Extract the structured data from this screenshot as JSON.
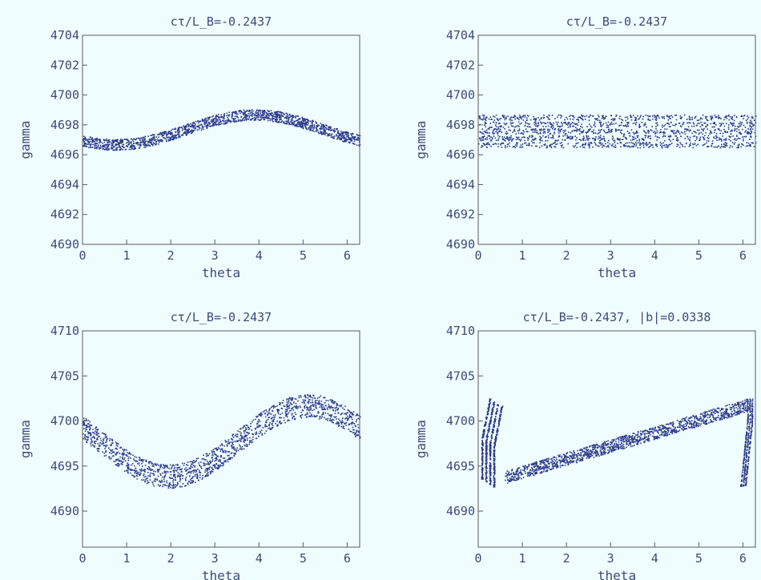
{
  "chart_data": [
    {
      "type": "scatter",
      "title": "cτ/L_B=-0.2437",
      "xlabel": "theta",
      "ylabel": "gamma",
      "xlim": [
        0,
        6.2832
      ],
      "ylim": [
        4690,
        4704
      ],
      "xticks": [
        "0",
        "1",
        "2",
        "3",
        "4",
        "5",
        "6"
      ],
      "yticks": [
        "4690",
        "4692",
        "4694",
        "4696",
        "4698",
        "4700",
        "4702",
        "4704"
      ],
      "marker_color": "#2d3a8c",
      "band": {
        "shape": "sine",
        "center_mean": 4697.7,
        "center_amplitude": 1.0,
        "phase_peak_theta": 3.9,
        "half_width": 0.35,
        "x": [
          0,
          1,
          2,
          3,
          3.9,
          5,
          6,
          6.28
        ],
        "y_center": [
          4696.9,
          4696.8,
          4697.3,
          4698.2,
          4698.6,
          4698.2,
          4697.2,
          4696.9
        ]
      }
    },
    {
      "type": "scatter",
      "title": "cτ/L_B=-0.2437",
      "xlabel": "theta",
      "ylabel": "gamma",
      "xlim": [
        0,
        6.2832
      ],
      "ylim": [
        4690,
        4704
      ],
      "xticks": [
        "0",
        "1",
        "2",
        "3",
        "4",
        "5",
        "6"
      ],
      "yticks": [
        "4690",
        "4692",
        "4694",
        "4696",
        "4698",
        "4700",
        "4702",
        "4704"
      ],
      "marker_color": "#2d3a8c",
      "band": {
        "shape": "flat",
        "center_mean": 4697.6,
        "center_amplitude": 0,
        "phase_peak_theta": 0,
        "half_width": 1.05,
        "x": [
          0,
          6.28
        ],
        "y_center": [
          4697.6,
          4697.6
        ]
      }
    },
    {
      "type": "scatter",
      "title": "cτ/L_B=-0.2437",
      "xlabel": "theta",
      "ylabel": "gamma",
      "xlim": [
        0,
        6.2832
      ],
      "ylim": [
        4686,
        4710
      ],
      "xticks": [
        "0",
        "1",
        "2",
        "3",
        "4",
        "5",
        "6"
      ],
      "yticks": [
        "4690",
        "4695",
        "4700",
        "4705",
        "4710"
      ],
      "marker_color": "#2d3a8c",
      "band": {
        "shape": "sine",
        "center_mean": 4697.8,
        "center_amplitude": 3.9,
        "phase_peak_theta": 5.1,
        "half_width": 1.25,
        "x": [
          0,
          1.9,
          3.5,
          5.1,
          6.28
        ],
        "y_center": [
          4698.6,
          4693.9,
          4697.0,
          4701.7,
          4698.6
        ]
      }
    },
    {
      "type": "scatter",
      "title": "cτ/L_B=-0.2437, |b|=0.0338",
      "xlabel": "theta",
      "ylabel": "gamma",
      "xlim": [
        0,
        6.2832
      ],
      "ylim": [
        4686,
        4710
      ],
      "xticks": [
        "0",
        "1",
        "2",
        "3",
        "4",
        "5",
        "6"
      ],
      "yticks": [
        "4690",
        "4695",
        "4700",
        "4705",
        "4710"
      ],
      "marker_color": "#2d3a8c",
      "band": {
        "shape": "ramp-with-hooks",
        "center_mean": 4698.0,
        "center_amplitude": 4.0,
        "phase_peak_theta": 6.1,
        "half_width": 0.9,
        "x": [
          0.6,
          6.1
        ],
        "y_center": [
          4693.8,
          4701.8
        ],
        "hook_left_x": [
          0,
          0.5
        ],
        "hook_left_y": [
          4693.5,
          4702.5
        ],
        "hook_right_x": [
          6.0,
          6.28
        ],
        "hook_right_y": [
          4692.8,
          4702.5
        ]
      }
    }
  ]
}
